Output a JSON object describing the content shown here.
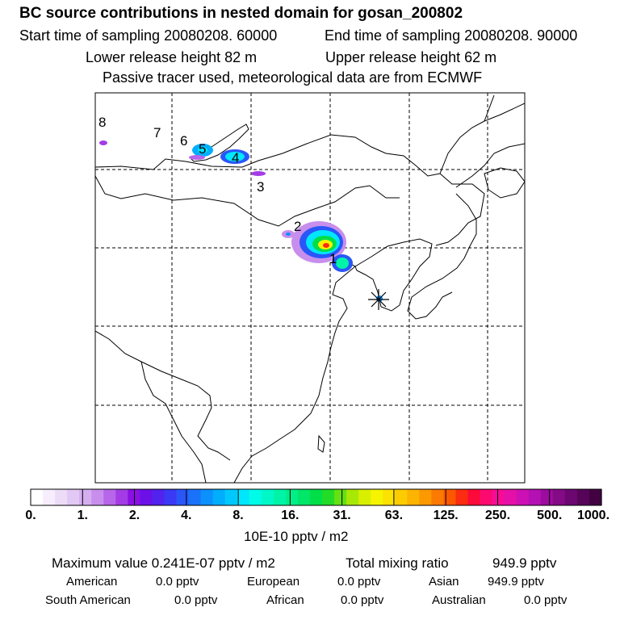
{
  "header": {
    "title": "BC  source contributions in nested domain for gosan_200802",
    "start": "Start time of sampling 20080208. 60000",
    "end": "End time of sampling 20080208. 90000",
    "lower": "Lower release height   82 m",
    "upper": "Upper release height   62 m",
    "note": "Passive tracer used, meteorological data are from ECMWF"
  },
  "map": {
    "receptor_marker": "asterisk-marker",
    "track_labels": [
      "1",
      "2",
      "3",
      "4",
      "5",
      "6",
      "7",
      "8"
    ]
  },
  "colorbar": {
    "ticks": [
      "0.",
      "1.",
      "2.",
      "4.",
      "8.",
      "16.",
      "31.",
      "63.",
      "125.",
      "250.",
      "500.",
      "1000."
    ],
    "units": "10E-10 pptv / m2",
    "colors": [
      "#ffffff",
      "#f6eefc",
      "#ecdcf8",
      "#e2c8f4",
      "#d6aef0",
      "#c88eec",
      "#b766ea",
      "#a33ce6",
      "#8a10e4",
      "#6c10e8",
      "#5222ee",
      "#3a3af4",
      "#2a56f8",
      "#1a72fa",
      "#0c90fc",
      "#00aefe",
      "#00c8fe",
      "#00e6fc",
      "#00fce8",
      "#00f8c8",
      "#00f4a8",
      "#00ee88",
      "#00e668",
      "#00de48",
      "#22dc28",
      "#66e012",
      "#a8e806",
      "#d8f000",
      "#f6f400",
      "#fce200",
      "#fccc00",
      "#fcb400",
      "#fc9800",
      "#fc7a00",
      "#fc5800",
      "#fc2c10",
      "#fc0a3a",
      "#fc0a70",
      "#f60c96",
      "#e410a8",
      "#cc10b4",
      "#b410b4",
      "#9c0c9e",
      "#840a86",
      "#6c0670",
      "#560458",
      "#420242"
    ]
  },
  "summary": {
    "max_label": "Maximum value  0.241E-07 pptv / m2",
    "total_label": "Total mixing ratio",
    "total_value": "949.9 pptv",
    "american_label": "American",
    "american_value": "0.0 pptv",
    "european_label": "European",
    "european_value": "0.0 pptv",
    "asian_label": "Asian",
    "asian_value": "949.9 pptv",
    "south_american_label": "South American",
    "south_american_value": "0.0 pptv",
    "african_label": "African",
    "african_value": "0.0 pptv",
    "australian_label": "Australian",
    "australian_value": "0.0 pptv"
  }
}
